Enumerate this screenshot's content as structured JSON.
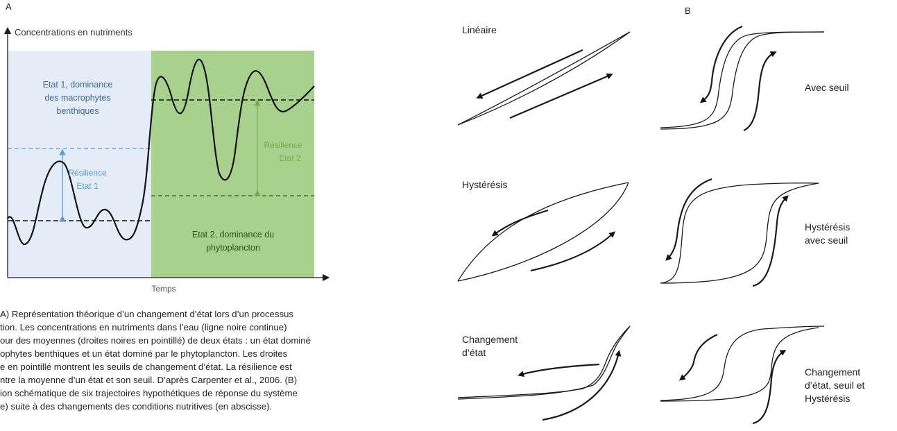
{
  "figure": {
    "panel_a_label": "A",
    "panel_b_label": "B"
  },
  "panel_a": {
    "y_axis_label": "Concentrations en nutriments",
    "x_axis_label": "Temps",
    "state1_label": [
      "Etat 1, dominance",
      "des macrophytes",
      "benthiques"
    ],
    "state2_label": [
      "Etat 2, dominance du",
      "phytoplancton"
    ],
    "resilience1_label": [
      "Résilience",
      "Etat 1"
    ],
    "resilience2_label": [
      "Résilience",
      "Etat 2"
    ],
    "colors": {
      "state1_bg": "#e4ecf7",
      "state2_bg": "#a9d18e",
      "resilience1": "#5b9bd5",
      "resilience2": "#70ad47",
      "curve": "#111111"
    }
  },
  "panel_b": {
    "labels": {
      "lineaire": "Linéaire",
      "avec_seuil": "Avec seuil",
      "hysteresis": "Hystérésis",
      "hysteresis_seuil": [
        "Hystérésis",
        "avec seuil"
      ],
      "changement": [
        "Changement",
        "d’état"
      ],
      "changement_seuil": [
        "Changement",
        "d’état, seuil et",
        "Hystérésis"
      ]
    }
  },
  "caption_lines": [
    "A) Représentation théorique d’un changement d’état lors d’un processus",
    "tion. Les concentrations en nutriments dans l’eau (ligne noire continue)",
    "our des moyennes (droites noires en pointillé) de deux états : un état dominé",
    "ophytes benthiques et un état dominé par le phytoplancton. Les droites",
    "e en pointillé montrent les seuils de changement d’état. La résilience est",
    "ntre la moyenne d’un état et son seuil. D’après Carpenter et al., 2006. (B)",
    "ion schématique de six trajectoires hypothétiques de réponse du système",
    "e) suite à des changements des conditions nutritives (en abscisse)."
  ]
}
